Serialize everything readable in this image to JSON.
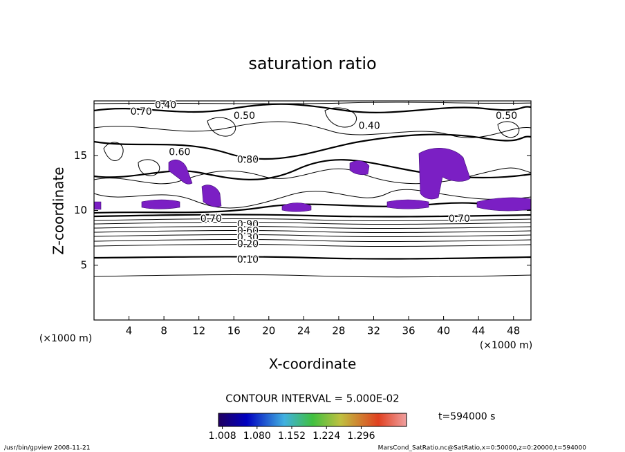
{
  "chart_data": {
    "type": "contour",
    "title": "saturation ratio",
    "xlabel": "X-coordinate",
    "ylabel": "Z-coordinate",
    "x_unit": "(×1000 m)",
    "y_unit": "(×1000 m)",
    "xlim": [
      0,
      50
    ],
    "ylim": [
      0,
      20
    ],
    "xticks": [
      4,
      8,
      12,
      16,
      20,
      24,
      28,
      32,
      36,
      40,
      44,
      48
    ],
    "yticks": [
      5,
      10,
      15
    ],
    "contour_labels": [
      {
        "value": 0.4,
        "label": "0.40",
        "x": 8.2,
        "z": 19.6
      },
      {
        "value": 0.7,
        "label": "0.70",
        "x": 5.4,
        "z": 19.0
      },
      {
        "value": 0.5,
        "label": "0.50",
        "x": 17.2,
        "z": 18.6
      },
      {
        "value": 0.4,
        "label": "0.40",
        "x": 31.5,
        "z": 17.7
      },
      {
        "value": 0.5,
        "label": "0.50",
        "x": 47.2,
        "z": 18.6
      },
      {
        "value": 0.8,
        "label": "0.80",
        "x": 17.6,
        "z": 14.6
      },
      {
        "value": 0.6,
        "label": "0.60",
        "x": 9.8,
        "z": 15.3
      },
      {
        "value": 0.7,
        "label": "0.70",
        "x": 13.4,
        "z": 9.2
      },
      {
        "value": 0.7,
        "label": "0.70",
        "x": 41.8,
        "z": 9.2
      },
      {
        "value": 0.9,
        "label": "0.90",
        "x": 17.6,
        "z": 8.7
      },
      {
        "value": 0.6,
        "label": "0.60",
        "x": 17.6,
        "z": 8.1
      },
      {
        "value": 0.3,
        "label": "0.30",
        "x": 17.6,
        "z": 7.5
      },
      {
        "value": 0.2,
        "label": "0.20",
        "x": 17.6,
        "z": 6.9
      },
      {
        "value": 0.1,
        "label": "0.10",
        "x": 17.6,
        "z": 5.5
      }
    ],
    "contour_interval": "CONTOUR INTERVAL = 5.000E-02",
    "time_label": "t=594000 s",
    "clim": [
      1.0,
      1.39
    ],
    "colorbar_ticks": [
      1.008,
      {
        "value": 1.08,
        "label": "1.080"
      },
      1.152,
      1.224,
      1.296
    ],
    "footer_left": "/usr/bin/gpview   2008-11-21",
    "footer_right": "MarsCond_SatRatio.nc@SatRatio,x=0:50000,z=0:20000,t=594000"
  }
}
